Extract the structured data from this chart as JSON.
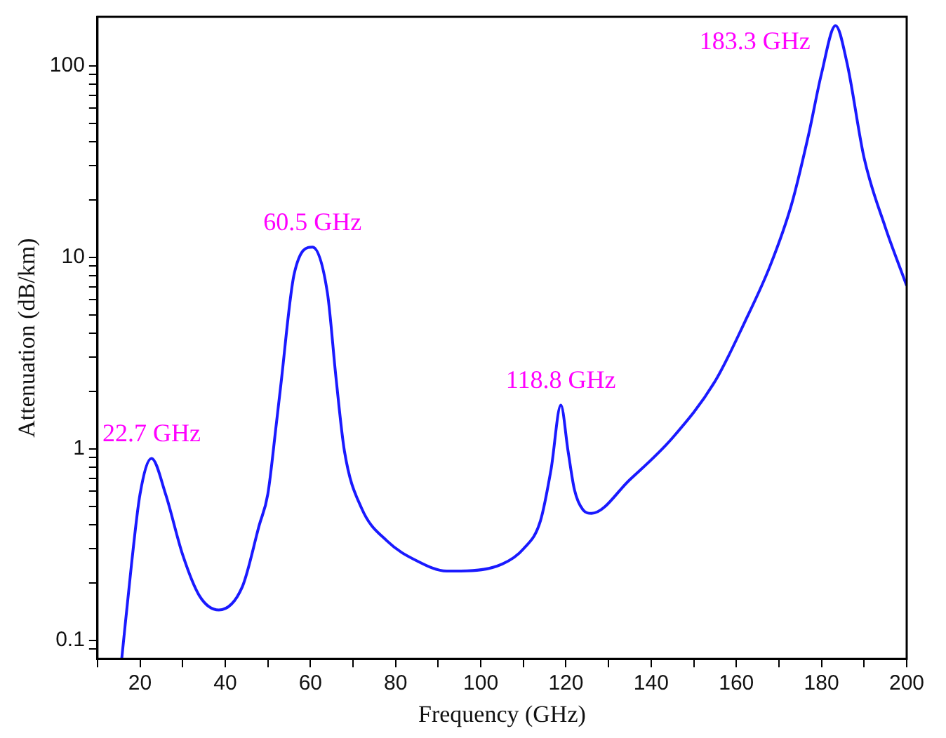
{
  "chart_data": {
    "type": "line",
    "xlabel": "Frequency (GHz)",
    "ylabel": "Attenuation (dB/km)",
    "log": "y",
    "grid": false,
    "legend": false,
    "marker": "none",
    "line_style": "solid",
    "xlim": [
      10,
      200
    ],
    "ylim": [
      0.08,
      180
    ],
    "xticks": [
      {
        "value": 10,
        "label": null
      },
      20,
      {
        "value": 30,
        "label": null
      },
      40,
      {
        "value": 50,
        "label": null
      },
      60,
      {
        "value": 70,
        "label": null
      },
      80,
      {
        "value": 90,
        "label": null
      },
      100,
      {
        "value": 110,
        "label": null
      },
      120,
      {
        "value": 130,
        "label": null
      },
      140,
      {
        "value": 150,
        "label": null
      },
      160,
      {
        "value": 170,
        "label": null
      },
      180,
      {
        "value": 190,
        "label": null
      },
      200
    ],
    "yticks": [
      {
        "value": 0.09,
        "label": null
      },
      0.1,
      {
        "value": 0.2,
        "label": null
      },
      {
        "value": 0.3,
        "label": null
      },
      {
        "value": 0.4,
        "label": null
      },
      {
        "value": 0.5,
        "label": null
      },
      {
        "value": 0.6,
        "label": null
      },
      {
        "value": 0.7,
        "label": null
      },
      {
        "value": 0.8,
        "label": null
      },
      {
        "value": 0.9,
        "label": null
      },
      1,
      {
        "value": 2,
        "label": null
      },
      {
        "value": 3,
        "label": null
      },
      {
        "value": 4,
        "label": null
      },
      {
        "value": 5,
        "label": null
      },
      {
        "value": 6,
        "label": null
      },
      {
        "value": 7,
        "label": null
      },
      {
        "value": 8,
        "label": null
      },
      {
        "value": 9,
        "label": null
      },
      10,
      {
        "value": 20,
        "label": null
      },
      {
        "value": 30,
        "label": null
      },
      {
        "value": 40,
        "label": null
      },
      {
        "value": 50,
        "label": null
      },
      {
        "value": 60,
        "label": null
      },
      {
        "value": 70,
        "label": null
      },
      {
        "value": 80,
        "label": null
      },
      {
        "value": 90,
        "label": null
      },
      100
    ],
    "x": [
      15.7,
      18,
      20,
      22.7,
      26,
      30,
      34,
      38.5,
      44,
      48,
      50,
      52,
      53,
      56.2,
      60.5,
      64,
      66,
      68,
      72,
      78,
      85,
      92,
      95.3,
      105,
      110,
      114,
      116.5,
      118.8,
      120.5,
      122,
      124,
      126,
      135,
      145,
      155,
      162,
      168,
      173,
      177,
      180,
      183.3,
      186,
      190,
      195,
      200
    ],
    "series": [
      {
        "color": "#1a1aff",
        "values": [
          0.08,
          0.25,
          0.58,
          0.89,
          0.58,
          0.28,
          0.17,
          0.144,
          0.19,
          0.4,
          0.58,
          1.35,
          2.1,
          8.2,
          11.3,
          6.5,
          2.36,
          0.97,
          0.49,
          0.33,
          0.26,
          0.23,
          0.23,
          0.25,
          0.3,
          0.42,
          0.78,
          1.69,
          0.97,
          0.61,
          0.48,
          0.46,
          0.69,
          1.14,
          2.25,
          4.6,
          9.1,
          19,
          44,
          91,
          162,
          103,
          33,
          14.3,
          7.1
        ]
      }
    ],
    "annotations": [
      {
        "text": "22.7 GHz",
        "x": 22.7,
        "y": 0.89
      },
      {
        "text": "60.5 GHz",
        "x": 60.5,
        "y": 11.3
      },
      {
        "text": "118.8 GHz",
        "x": 118.8,
        "y": 1.69
      },
      {
        "text": "183.3 GHz",
        "x": 183.3,
        "y": 162
      }
    ]
  }
}
